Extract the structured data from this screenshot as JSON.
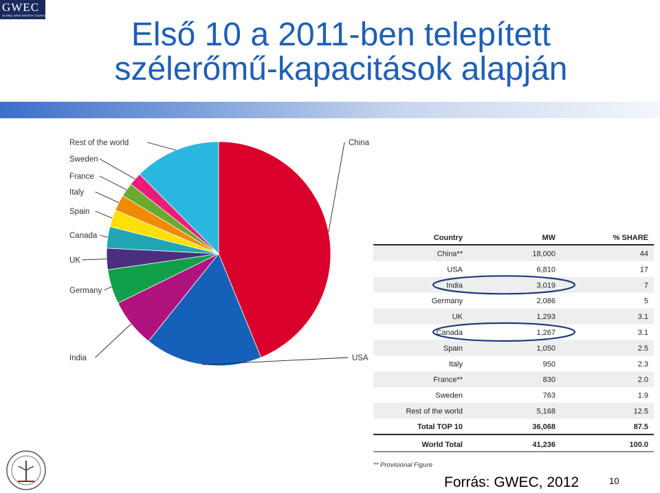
{
  "logo": {
    "text": "GWEC",
    "subtext": "GLOBAL WIND ENERGY COUNCIL"
  },
  "slide": {
    "title_line1": "Első 10 a 2011-ben telepített",
    "title_line2": "szélerőmű-kapacitások alapján",
    "source": "Forrás: GWEC, 2012",
    "page_number": "10"
  },
  "colors": {
    "title": "#1f5fb4",
    "ellipse": "#1f3c78"
  },
  "chart_data": {
    "type": "pie",
    "slices": [
      {
        "label": "China",
        "value": 44,
        "color": "#d9002b"
      },
      {
        "label": "USA",
        "value": 17,
        "color": "#1560b8"
      },
      {
        "label": "India",
        "value": 7,
        "color": "#b0127e"
      },
      {
        "label": "Germany",
        "value": 5,
        "color": "#11a04a"
      },
      {
        "label": "UK",
        "value": 3.1,
        "color": "#4a2f7e"
      },
      {
        "label": "Canada",
        "value": 3.1,
        "color": "#22a5b5"
      },
      {
        "label": "Spain",
        "value": 2.5,
        "color": "#ffe000"
      },
      {
        "label": "Italy",
        "value": 2.3,
        "color": "#f08a00"
      },
      {
        "label": "France",
        "value": 2.0,
        "color": "#6aaa2e"
      },
      {
        "label": "Sweden",
        "value": 1.9,
        "color": "#ea1d78"
      },
      {
        "label": "Rest of the world",
        "value": 12.5,
        "color": "#2ab8e0"
      }
    ]
  },
  "table": {
    "headers": [
      "Country",
      "MW",
      "% SHARE"
    ],
    "rows": [
      [
        "China**",
        "18,000",
        "44"
      ],
      [
        "USA",
        "6,810",
        "17"
      ],
      [
        "India",
        "3,019",
        "7"
      ],
      [
        "Germany",
        "2,086",
        "5"
      ],
      [
        "UK",
        "1,293",
        "3.1"
      ],
      [
        "Canada",
        "1,267",
        "3.1"
      ],
      [
        "Spain",
        "1,050",
        "2.5"
      ],
      [
        "Italy",
        "950",
        "2.3"
      ],
      [
        "France**",
        "830",
        "2.0"
      ],
      [
        "Sweden",
        "763",
        "1.9"
      ],
      [
        "Rest of the world",
        "5,168",
        "12.5"
      ]
    ],
    "total_top10": [
      "Total TOP 10",
      "36,068",
      "87.5"
    ],
    "world_total": [
      "World Total",
      "41,236",
      "100.0"
    ],
    "footnote": "** Provisional Figure",
    "highlighted_rows": [
      "India",
      "Canada"
    ]
  }
}
